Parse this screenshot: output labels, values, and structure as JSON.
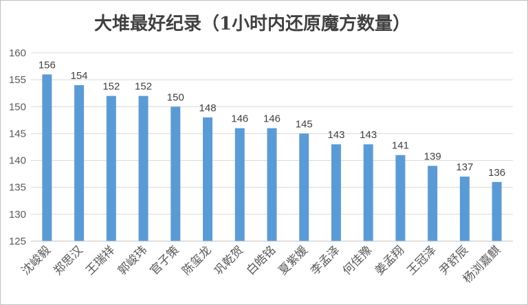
{
  "chart_data": {
    "type": "bar",
    "title": "大堆最好纪录（1小时内还原魔方数量）",
    "categories": [
      "沈峻毅",
      "郑思汉",
      "王瑞祥",
      "郭峻玮",
      "官子策",
      "陈玺龙",
      "巩乾贺",
      "白皓铭",
      "夏紫媛",
      "李孟泽",
      "何佳豫",
      "姜孟翔",
      "王冠泽",
      "尹舒辰",
      "杨浏嘉麒"
    ],
    "values": [
      156,
      154,
      152,
      152,
      150,
      148,
      146,
      146,
      145,
      143,
      143,
      141,
      139,
      137,
      136
    ],
    "ylim": [
      125,
      160
    ],
    "yticks": [
      125,
      130,
      135,
      140,
      145,
      150,
      155,
      160
    ],
    "grid": true,
    "legend": "none",
    "bar_color": "#5b9bd5"
  }
}
